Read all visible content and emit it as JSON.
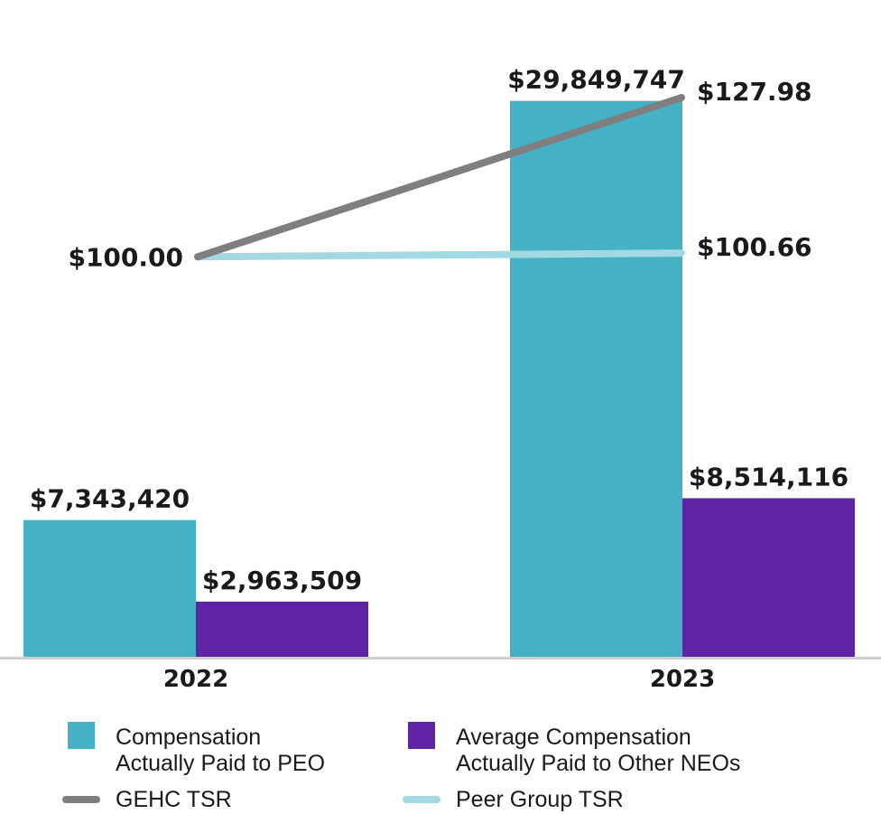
{
  "chart_data": {
    "type": "bar",
    "categories": [
      "2022",
      "2023"
    ],
    "series": [
      {
        "name": "Compensation Actually Paid to PEO",
        "legend_lines": [
          "Compensation",
          "Actually Paid to PEO"
        ],
        "values": [
          7343420,
          29849747
        ],
        "labels": [
          "$7,343,420",
          "$29,849,747"
        ],
        "color": "#45b1c5"
      },
      {
        "name": "Average Compensation Actually Paid to Other NEOs",
        "legend_lines": [
          "Average Compensation",
          "Actually Paid to Other NEOs"
        ],
        "values": [
          2963509,
          8514116
        ],
        "labels": [
          "$2,963,509",
          "$8,514,116"
        ],
        "color": "#5f24a6"
      }
    ],
    "lines": [
      {
        "name": "GEHC TSR",
        "values": [
          100.0,
          127.98
        ],
        "labels": [
          "$100.00",
          "$127.98"
        ],
        "color": "#7f7f7f"
      },
      {
        "name": "Peer Group TSR",
        "values": [
          100.0,
          100.66
        ],
        "labels": [
          "",
          "$100.66"
        ],
        "color": "#a3d9e3"
      }
    ],
    "ylim": [
      0,
      30000000
    ],
    "tsr_range": [
      64.5,
      127.98
    ],
    "grid": false,
    "legend_position": "bottom"
  }
}
